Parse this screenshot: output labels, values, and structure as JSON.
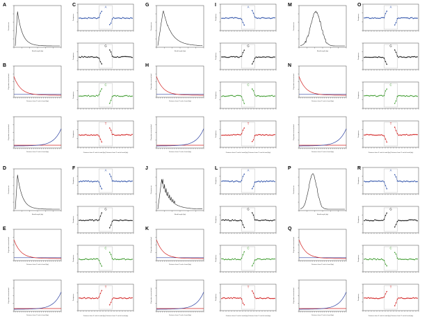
{
  "figure": {
    "groups": [
      {
        "len": "A",
        "misL": "B",
        "misR": "H0",
        "base": "C",
        "profile": "decay"
      },
      {
        "len": "G",
        "misL": "H",
        "misR": "H1",
        "base": "I",
        "profile": "hump"
      },
      {
        "len": "M",
        "misL": "N",
        "misR": "H2",
        "base": "O",
        "profile": "hump_wide"
      },
      {
        "len": "D",
        "misL": "E",
        "misR": "H3",
        "base": "F",
        "profile": "decay"
      },
      {
        "len": "J",
        "misL": "K",
        "misR": "H4",
        "base": "L",
        "profile": "spiky"
      },
      {
        "len": "P",
        "misL": "Q",
        "misR": "H5",
        "base": "R",
        "profile": "peak"
      }
    ],
    "panel_labels": [
      "A",
      "B",
      "C",
      "D",
      "E",
      "F",
      "G",
      "H",
      "I",
      "J",
      "K",
      "L",
      "M",
      "N",
      "O",
      "P",
      "Q",
      "R"
    ],
    "length_panel": {
      "xlabel": "Read length (bp)",
      "ylabel": "Occurrences"
    },
    "mismatch_left": {
      "xlabel": "Distance from 5' end of read (bp)",
      "ylabel": "Proportion mismatched"
    },
    "mismatch_right": {
      "xlabel": "Distance from 3' end of read (bp)",
      "ylabel": "Proportion mismatched"
    },
    "base_panel": {
      "xlabel": "Distance from 5' end of read (bp)  Distance from 3' end of read (bp)",
      "ylabel": "Frequency"
    },
    "bases": [
      {
        "name": "A",
        "color": "#2b4fa8"
      },
      {
        "name": "G",
        "color": "#111111"
      },
      {
        "name": "C",
        "color": "#3a9a2a"
      },
      {
        "name": "T",
        "color": "#d22020"
      }
    ],
    "colors": {
      "red": "#d22020",
      "blue": "#2b3fa0",
      "line": "#222222"
    }
  }
}
